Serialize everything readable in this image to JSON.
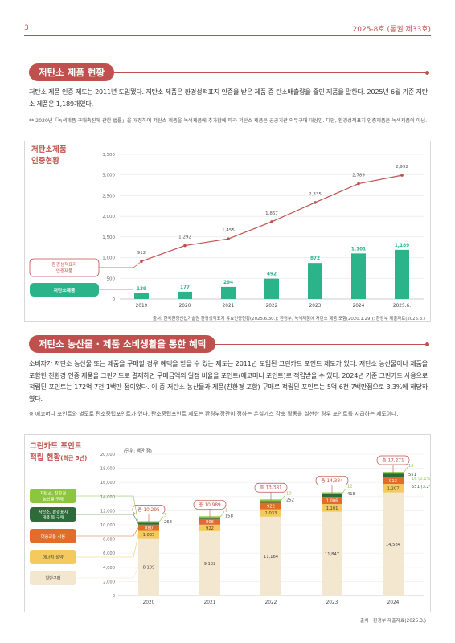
{
  "header": {
    "page": "3",
    "issue": "2025-8호 (통권 제33호)"
  },
  "section1": {
    "title": "저탄소 제품 현황",
    "paragraph": "저탄소 제품 인증 제도는 2011년 도입됐다. 저탄소 제품은 환경성적표지 인증을 받은 제품 중 탄소배출량을 줄인 제품을 말한다. 2025년 6월 기준 저탄소 제품은 1,189개였다.",
    "note": "** 2020년「녹색제품 구매촉진에 관한 법률」을 개정하여 저탄소 제품을 녹색제품에 추가함에 따라 저탄소 제품은 공공기관 의무구매 대상임. 다만, 환경성적표지 인증제품은 녹색제품이 아님.",
    "chart_title_1": "저탄소제품",
    "chart_title_2": "인증현황",
    "legend": {
      "env": "환경성적표지\n인증제품",
      "low": "저탄소제품"
    },
    "source": "출처: 한국환경산업기술원 환경성적표지 유효인증현황(2025.6.30.); 환경부, 녹색제품에 저탄소 제품 포함(2020.1.29.); 환경부 제출자료(2025.3.)"
  },
  "section2": {
    "title": "저탄소 농산물 · 제품 소비생활을 통한 혜택",
    "paragraph": "소비자가 저탄소 농산물 또는 제품을 구매할 경우 혜택을 받을 수 있는 제도는 2011년 도입된 그린카드 포인트 제도가 있다. 저탄소 농산물이나 제품을 포함한 친환경 인증 제품을 그린카드로 결제하면 구매금액의 일정 비율을 포인트(에코머니 포인트)로 적립받을 수 있다. 2024년 기준 그린카드 사용으로 적립된 포인트는 172억 7천 1백만 점이었다. 이 중 저탄소 농산물과 제품(친환경 포함) 구매로 적립된 포인트는 5억 6천 7백만점으로 3.3%에 해당하였다.",
    "note": "※ 에코머니 포인트와 별도로 탄소중립포인트가 있다. 탄소중립포인트 제도는 환경부장관이 정하는 온실가스 감축 활동을 실천한 경우 포인트를 지급하는 제도이다.",
    "chart_title_1": "그린카드 포인트",
    "chart_title_2": "적립 현황",
    "chart_title_sub": "(최근 5년)",
    "unit": "(단위: 백만 점)",
    "legend": [
      "저탄소, 친환경\n농산물 구매",
      "저탄소, 환경표지\n제품 등 구매",
      "대중교통 사용",
      "에너지 절약",
      "일반구매"
    ],
    "source": "출처 : 환경부 제출자료(2025.3.)"
  },
  "colors": {
    "accent": "#c0504d",
    "green": "#2bb38a",
    "lightgreen": "#8cc63f",
    "darkgreen": "#2e6b3a",
    "orange": "#e36c2a",
    "yellow": "#f4c95d",
    "beige": "#f3e7cf"
  },
  "chart_data": [
    {
      "type": "bar",
      "categories": [
        "2019",
        "2020",
        "2021",
        "2022",
        "2023",
        "2024",
        "2025.6."
      ],
      "series": [
        {
          "name": "환경성적표지 인증제품",
          "chart": "line",
          "values": [
            912,
            1292,
            1455,
            1867,
            2335,
            2789,
            2992
          ]
        },
        {
          "name": "저탄소제품",
          "chart": "bar",
          "values": [
            139,
            177,
            294,
            492,
            872,
            1101,
            1189
          ]
        }
      ],
      "yticks": [
        "0",
        "500",
        "1,000",
        "1,500",
        "2,000",
        "2,500",
        "3,000",
        "3,500"
      ],
      "ylim": [
        0,
        3500
      ]
    },
    {
      "type": "bar",
      "stacked": true,
      "categories": [
        "2020",
        "2021",
        "2022",
        "2023",
        "2024"
      ],
      "series": [
        {
          "name": "일반구매",
          "values": [
            8109,
            9102,
            11164,
            11847,
            14584
          ]
        },
        {
          "name": "에너지 절약",
          "values": [
            1035,
            922,
            1033,
            1101,
            1207
          ]
        },
        {
          "name": "대중교통 사용",
          "values": [
            880,
            806,
            922,
            1006,
            913
          ]
        },
        {
          "name": "저탄소, 환경표지 제품 등 구매",
          "values": [
            268,
            158,
            252,
            418,
            551
          ]
        },
        {
          "name": "저탄소, 친환경 농산물 구매",
          "values": [
            3,
            1,
            10,
            12,
            16
          ]
        }
      ],
      "totals": [
        "총 10,295",
        "총 10,989",
        "총 13,381",
        "총 14,384",
        "총 17,271"
      ],
      "pct_labels": {
        "green": "16 (0.1%)",
        "darkgreen": "551 (3.2%)"
      },
      "yticks": [
        "0",
        "2,000",
        "4,000",
        "6,000",
        "8,000",
        "10,000",
        "12,000",
        "14,000",
        "16,000",
        "18,000",
        "20,000"
      ],
      "ylim": [
        0,
        20000
      ]
    }
  ]
}
